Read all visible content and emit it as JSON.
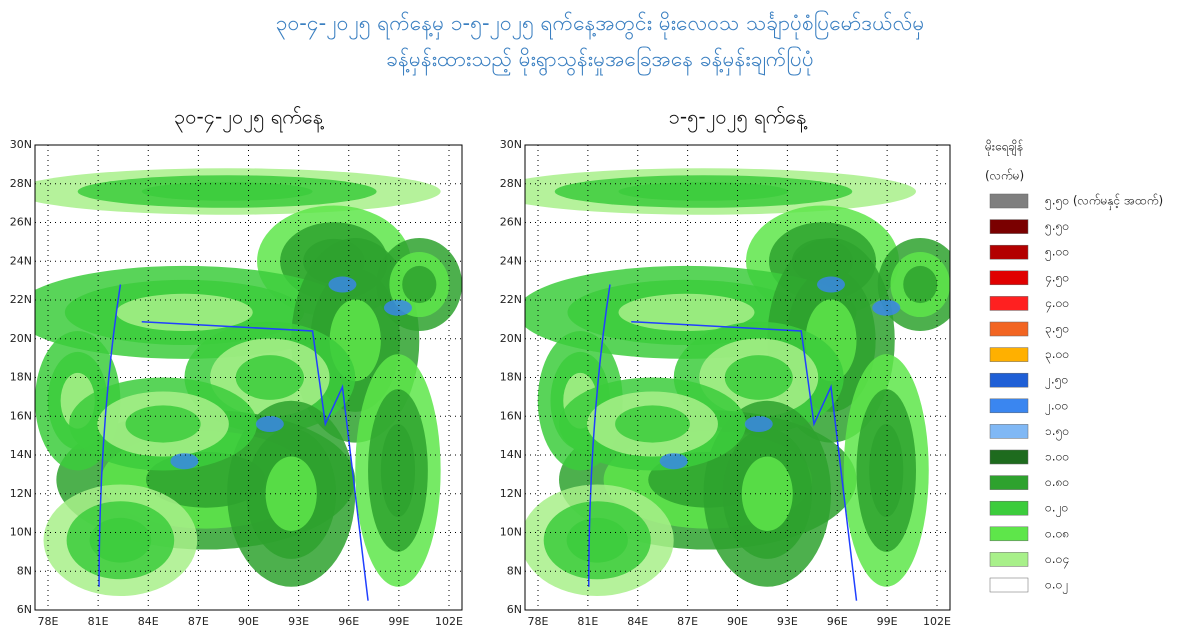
{
  "header": {
    "title_line1": "၃၀-၄-၂၀၂၅ ရက်နေ့မှ ၁-၅-၂၀၂၅ ရက်နေ့အတွင်း မိုးလေဝသ သင်္ချာပုံစံပြမော်ဒယ်လ်မှ",
    "title_line2": "ခန့်မှန်းထားသည့် မိုးရွာသွန်းမှုအခြေအနေ ခန့်မှန်းချက်ပြပုံ"
  },
  "panels": [
    {
      "title": "၃၀-၄-၂၀၂၅ ရက်နေ့"
    },
    {
      "title": "၁-၅-၂၀၂၅ ရက်နေ့"
    }
  ],
  "lat_labels": [
    "30N",
    "28N",
    "26N",
    "24N",
    "22N",
    "20N",
    "18N",
    "16N",
    "14N",
    "12N",
    "10N",
    "8N",
    "6N"
  ],
  "lon_labels": [
    "78E",
    "81E",
    "84E",
    "87E",
    "90E",
    "93E",
    "96E",
    "99E",
    "102E"
  ],
  "legend": {
    "title": "မိုးရေချိန်",
    "unit": "(လက်မ)",
    "items": [
      {
        "label": "၅.၅၀ (လက်မနှင့် အထက်)",
        "color": "#7f7f7f"
      },
      {
        "label": "၅.၅၀",
        "color": "#7a0000"
      },
      {
        "label": "၅.၀၀",
        "color": "#b30000"
      },
      {
        "label": "၄.၅၀",
        "color": "#e00000"
      },
      {
        "label": "၄.၀၀",
        "color": "#ff2020"
      },
      {
        "label": "၃.၅၀",
        "color": "#f26522"
      },
      {
        "label": "၃.၀၀",
        "color": "#ffb000"
      },
      {
        "label": "၂.၅၀",
        "color": "#1f5fd6"
      },
      {
        "label": "၂.၀၀",
        "color": "#3a86f0"
      },
      {
        "label": "၁.၅၀",
        "color": "#80b8f5"
      },
      {
        "label": "၁.၀၀",
        "color": "#1e6b1e"
      },
      {
        "label": "၀.၈၀",
        "color": "#2ea22e"
      },
      {
        "label": "၀.၂၀",
        "color": "#3ccc3c"
      },
      {
        "label": "၀.၀၈",
        "color": "#5ee64a"
      },
      {
        "label": "၀.၀၄",
        "color": "#a8f08a"
      },
      {
        "label": "၀.၀၂",
        "color": "#ffffff"
      }
    ]
  }
}
